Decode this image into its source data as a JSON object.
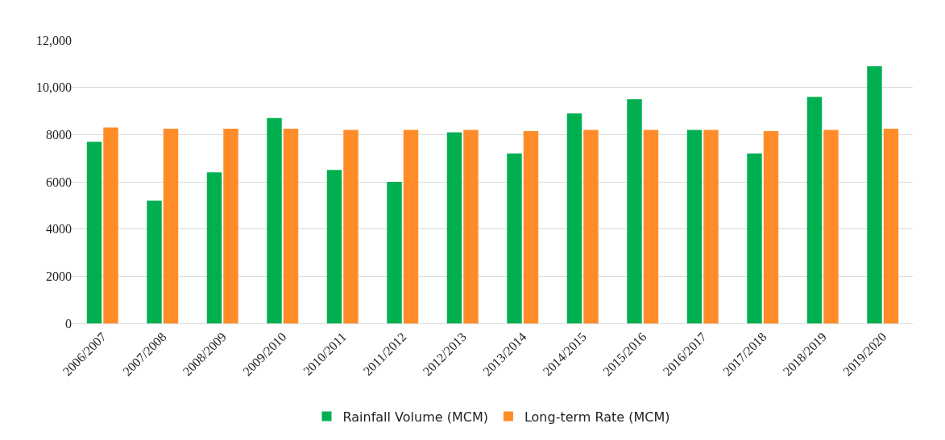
{
  "chart_data": {
    "type": "bar",
    "categories": [
      "2006/2007",
      "2007/2008",
      "2008/2009",
      "2009/2010",
      "2010/2011",
      "2011/2012",
      "2012/2013",
      "2013/2014",
      "2014/2015",
      "2015/2016",
      "2016/2017",
      "2017/2018",
      "2018/2019",
      "2019/2020"
    ],
    "series": [
      {
        "name": "Rainfall Volume (MCM)",
        "color": "#00b050",
        "values": [
          7700,
          5200,
          6400,
          8700,
          6500,
          6000,
          8100,
          7200,
          8900,
          9500,
          8200,
          7200,
          9600,
          10900
        ]
      },
      {
        "name": "Long-term Rate (MCM)",
        "color": "#ff8c28",
        "values": [
          8300,
          8250,
          8250,
          8250,
          8200,
          8200,
          8200,
          8150,
          8200,
          8200,
          8200,
          8150,
          8200,
          8250
        ]
      }
    ],
    "ylim": [
      0,
      12000
    ],
    "yticks": [
      0,
      2000,
      4000,
      6000,
      8000,
      {
        "value": 10000,
        "label": "10,000"
      },
      {
        "value": 12000,
        "label": "12,000"
      }
    ],
    "grid": "y",
    "legend": "bottom"
  }
}
